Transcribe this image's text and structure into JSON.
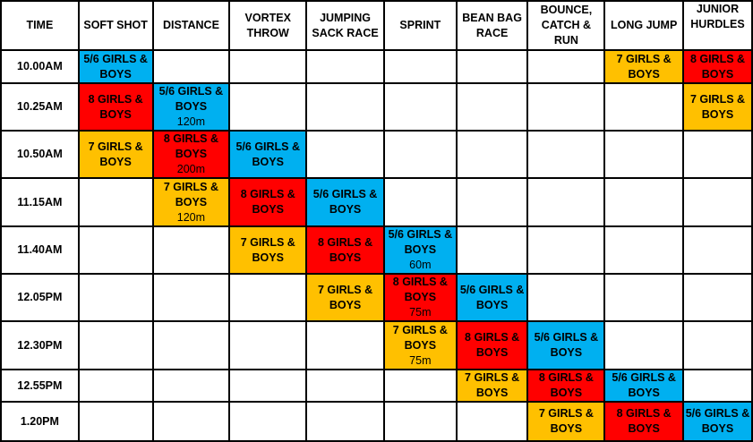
{
  "colors": {
    "5/6": "#00B0F0",
    "8": "#FF0000",
    "7": "#FFC000"
  },
  "headers": [
    "TIME",
    "SOFT SHOT",
    "DISTANCE",
    "VORTEX THROW",
    "JUMPING SACK RACE",
    "SPRINT",
    "BEAN BAG RACE",
    "BOUNCE, CATCH & RUN",
    "LONG JUMP",
    "JUNIOR HURDLES"
  ],
  "rows": [
    {
      "time": "10.00AM",
      "cells": [
        {
          "g": "5/6",
          "t": "5/6 GIRLS & BOYS"
        },
        null,
        null,
        null,
        null,
        null,
        null,
        {
          "g": "7",
          "t": "7 GIRLS & BOYS"
        },
        {
          "g": "8",
          "t": "8 GIRLS & BOYS"
        }
      ]
    },
    {
      "time": "10.25AM",
      "cells": [
        {
          "g": "8",
          "t": "8 GIRLS & BOYS"
        },
        {
          "g": "5/6",
          "t": "5/6 GIRLS & BOYS",
          "n": "120m"
        },
        null,
        null,
        null,
        null,
        null,
        null,
        {
          "g": "7",
          "t": "7 GIRLS & BOYS"
        }
      ]
    },
    {
      "time": "10.50AM",
      "cells": [
        {
          "g": "7",
          "t": "7 GIRLS & BOYS"
        },
        {
          "g": "8",
          "t": "8 GIRLS & BOYS",
          "n": "200m"
        },
        {
          "g": "5/6",
          "t": "5/6 GIRLS & BOYS"
        },
        null,
        null,
        null,
        null,
        null,
        null
      ]
    },
    {
      "time": "11.15AM",
      "cells": [
        null,
        {
          "g": "7",
          "t": "7 GIRLS & BOYS",
          "n": "120m"
        },
        {
          "g": "8",
          "t": "8 GIRLS & BOYS"
        },
        {
          "g": "5/6",
          "t": "5/6 GIRLS & BOYS"
        },
        null,
        null,
        null,
        null,
        null
      ]
    },
    {
      "time": "11.40AM",
      "cells": [
        null,
        null,
        {
          "g": "7",
          "t": "7 GIRLS & BOYS"
        },
        {
          "g": "8",
          "t": "8 GIRLS & BOYS"
        },
        {
          "g": "5/6",
          "t": "5/6 GIRLS & BOYS",
          "n": "60m"
        },
        null,
        null,
        null,
        null
      ]
    },
    {
      "time": "12.05PM",
      "cells": [
        null,
        null,
        null,
        {
          "g": "7",
          "t": "7 GIRLS & BOYS"
        },
        {
          "g": "8",
          "t": "8 GIRLS & BOYS",
          "n": "75m"
        },
        {
          "g": "5/6",
          "t": "5/6 GIRLS & BOYS"
        },
        null,
        null,
        null
      ]
    },
    {
      "time": "12.30PM",
      "cells": [
        null,
        null,
        null,
        null,
        {
          "g": "7",
          "t": "7 GIRLS & BOYS",
          "n": "75m"
        },
        {
          "g": "8",
          "t": "8 GIRLS & BOYS"
        },
        {
          "g": "5/6",
          "t": "5/6 GIRLS & BOYS"
        },
        null,
        null
      ]
    },
    {
      "time": "12.55PM",
      "cells": [
        null,
        null,
        null,
        null,
        null,
        {
          "g": "7",
          "t": "7 GIRLS & BOYS"
        },
        {
          "g": "8",
          "t": "8 GIRLS & BOYS"
        },
        {
          "g": "5/6",
          "t": "5/6 GIRLS & BOYS"
        },
        null
      ]
    },
    {
      "time": "1.20PM",
      "cells": [
        null,
        null,
        null,
        null,
        null,
        null,
        {
          "g": "7",
          "t": "7 GIRLS & BOYS"
        },
        {
          "g": "8",
          "t": "8 GIRLS & BOYS"
        },
        {
          "g": "5/6",
          "t": "5/6 GIRLS & BOYS"
        }
      ]
    }
  ]
}
